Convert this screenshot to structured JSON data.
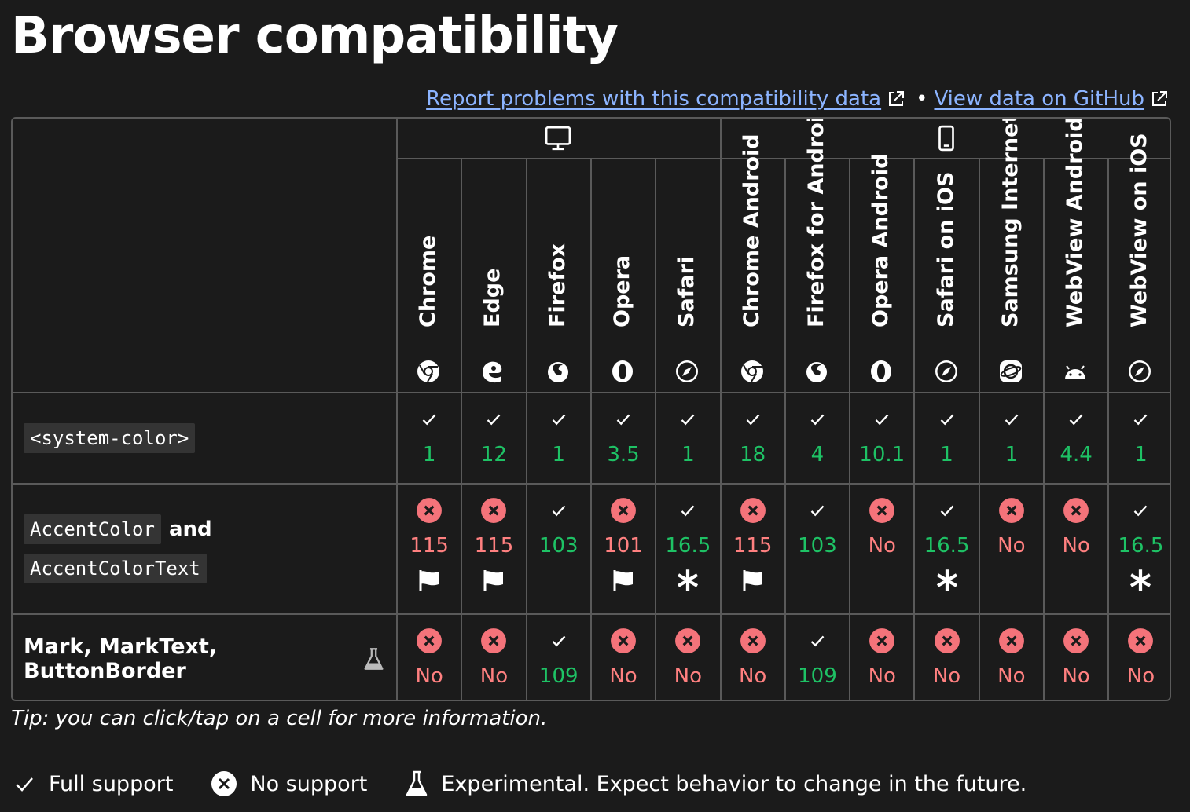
{
  "heading": "Browser compatibility",
  "links": {
    "report": "Report problems with this compatibility data",
    "separator": "•",
    "github": "View data on GitHub"
  },
  "platforms": [
    {
      "name": "desktop",
      "icon": "desktop-icon"
    },
    {
      "name": "mobile",
      "icon": "mobile-icon"
    }
  ],
  "browsers": [
    {
      "name": "Chrome",
      "icon": "chrome-icon"
    },
    {
      "name": "Edge",
      "icon": "edge-icon"
    },
    {
      "name": "Firefox",
      "icon": "firefox-icon"
    },
    {
      "name": "Opera",
      "icon": "opera-icon"
    },
    {
      "name": "Safari",
      "icon": "safari-icon"
    },
    {
      "name": "Chrome Android",
      "icon": "chrome-icon"
    },
    {
      "name": "Firefox for Android",
      "icon": "firefox-icon"
    },
    {
      "name": "Opera Android",
      "icon": "opera-icon"
    },
    {
      "name": "Safari on iOS",
      "icon": "safari-icon"
    },
    {
      "name": "Samsung Internet",
      "icon": "samsung-internet-icon"
    },
    {
      "name": "WebView Android",
      "icon": "android-icon"
    },
    {
      "name": "WebView on iOS",
      "icon": "safari-icon"
    }
  ],
  "features": [
    {
      "codes": [
        "<system-color>"
      ],
      "cells": [
        {
          "support": "yes",
          "version": "1"
        },
        {
          "support": "yes",
          "version": "12"
        },
        {
          "support": "yes",
          "version": "1"
        },
        {
          "support": "yes",
          "version": "3.5"
        },
        {
          "support": "yes",
          "version": "1"
        },
        {
          "support": "yes",
          "version": "18"
        },
        {
          "support": "yes",
          "version": "4"
        },
        {
          "support": "yes",
          "version": "10.1"
        },
        {
          "support": "yes",
          "version": "1"
        },
        {
          "support": "yes",
          "version": "1"
        },
        {
          "support": "yes",
          "version": "4.4"
        },
        {
          "support": "yes",
          "version": "1"
        }
      ]
    },
    {
      "codes": [
        "AccentColor",
        "AccentColorText"
      ],
      "and": "and",
      "cells": [
        {
          "support": "no",
          "version": "115",
          "note": "flag"
        },
        {
          "support": "no",
          "version": "115",
          "note": "flag"
        },
        {
          "support": "yes",
          "version": "103"
        },
        {
          "support": "no",
          "version": "101",
          "note": "flag"
        },
        {
          "support": "yes",
          "version": "16.5",
          "note": "asterisk"
        },
        {
          "support": "no",
          "version": "115",
          "note": "flag"
        },
        {
          "support": "yes",
          "version": "103"
        },
        {
          "support": "no",
          "version": "No"
        },
        {
          "support": "yes",
          "version": "16.5",
          "note": "asterisk"
        },
        {
          "support": "no",
          "version": "No"
        },
        {
          "support": "no",
          "version": "No"
        },
        {
          "support": "yes",
          "version": "16.5",
          "note": "asterisk"
        }
      ]
    },
    {
      "label": "Mark, MarkText, ButtonBorder",
      "experimental": true,
      "cells": [
        {
          "support": "no",
          "version": "No"
        },
        {
          "support": "no",
          "version": "No"
        },
        {
          "support": "yes",
          "version": "109"
        },
        {
          "support": "no",
          "version": "No"
        },
        {
          "support": "no",
          "version": "No"
        },
        {
          "support": "no",
          "version": "No"
        },
        {
          "support": "yes",
          "version": "109"
        },
        {
          "support": "no",
          "version": "No"
        },
        {
          "support": "no",
          "version": "No"
        },
        {
          "support": "no",
          "version": "No"
        },
        {
          "support": "no",
          "version": "No"
        },
        {
          "support": "no",
          "version": "No"
        }
      ]
    }
  ],
  "tip": "Tip: you can click/tap on a cell for more information.",
  "legend": [
    {
      "icon": "check-icon",
      "label": "Full support"
    },
    {
      "icon": "no-support-icon",
      "label": "No support"
    },
    {
      "icon": "flask-icon",
      "label": "Experimental. Expect behavior to change in the future."
    }
  ],
  "colors": {
    "background": "#1b1b1b",
    "link": "#8cb4ff",
    "yes": "#1ec265",
    "no": "#ff8080",
    "no_icon_bg": "#f4737a",
    "border": "#5a5a5a"
  }
}
